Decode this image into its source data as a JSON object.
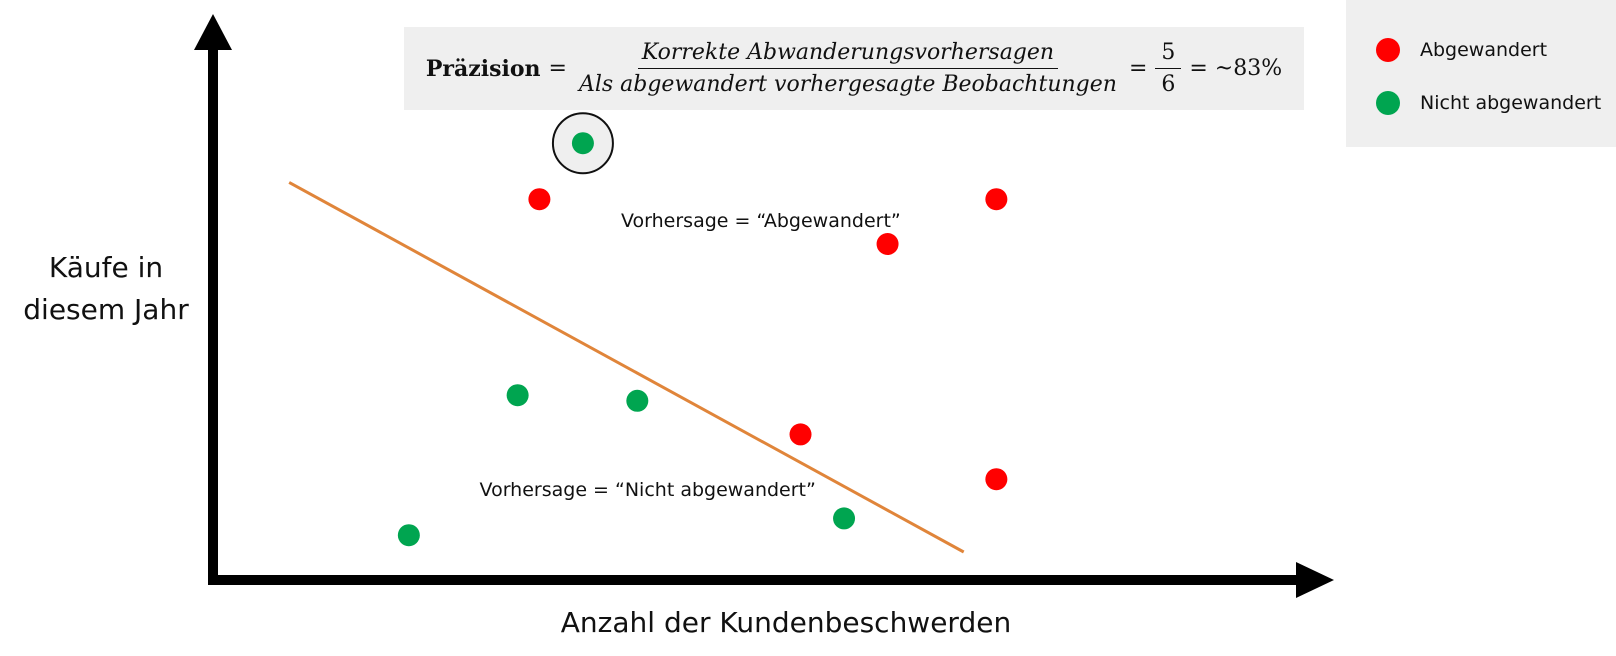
{
  "chart_data": {
    "type": "scatter",
    "xlabel": "Anzahl der Kundenbeschwerden",
    "ylabel_lines": [
      "Käufe in",
      "diesem Jahr"
    ],
    "xlim": [
      0,
      100
    ],
    "ylim": [
      0,
      100
    ],
    "grid": false,
    "legend_position": "top-right",
    "series": [
      {
        "name": "Abgewandert",
        "color": "#ff0000",
        "points": [
          {
            "x": 30,
            "y": 68
          },
          {
            "x": 62,
            "y": 60
          },
          {
            "x": 72,
            "y": 68
          },
          {
            "x": 54,
            "y": 26
          },
          {
            "x": 72,
            "y": 18
          }
        ]
      },
      {
        "name": "Nicht abgewandert",
        "color": "#00a550",
        "points": [
          {
            "x": 34,
            "y": 78,
            "highlighted": true
          },
          {
            "x": 28,
            "y": 33
          },
          {
            "x": 39,
            "y": 32
          },
          {
            "x": 18,
            "y": 8
          },
          {
            "x": 58,
            "y": 11
          }
        ]
      }
    ],
    "decision_boundary": {
      "color": "#e0853a",
      "from": {
        "x": 7,
        "y": 71
      },
      "to": {
        "x": 69,
        "y": 5
      }
    },
    "annotations": [
      {
        "id": "prediction-churned",
        "text": "Vorhersage = “Abgewandert”",
        "x": 37.5,
        "y": 63
      },
      {
        "id": "prediction-not-churned",
        "text": "Vorhersage = “Nicht abgewandert”",
        "x": 24.5,
        "y": 15
      }
    ],
    "formula": {
      "lhs": "Präzision",
      "eq": "=",
      "numerator": "Korrekte Abwanderungsvorhersagen",
      "denominator": "Als abgewandert vorhergesagte Beobachtungen",
      "value_numerator": "5",
      "value_denominator": "6",
      "result": "= ~83%"
    }
  }
}
